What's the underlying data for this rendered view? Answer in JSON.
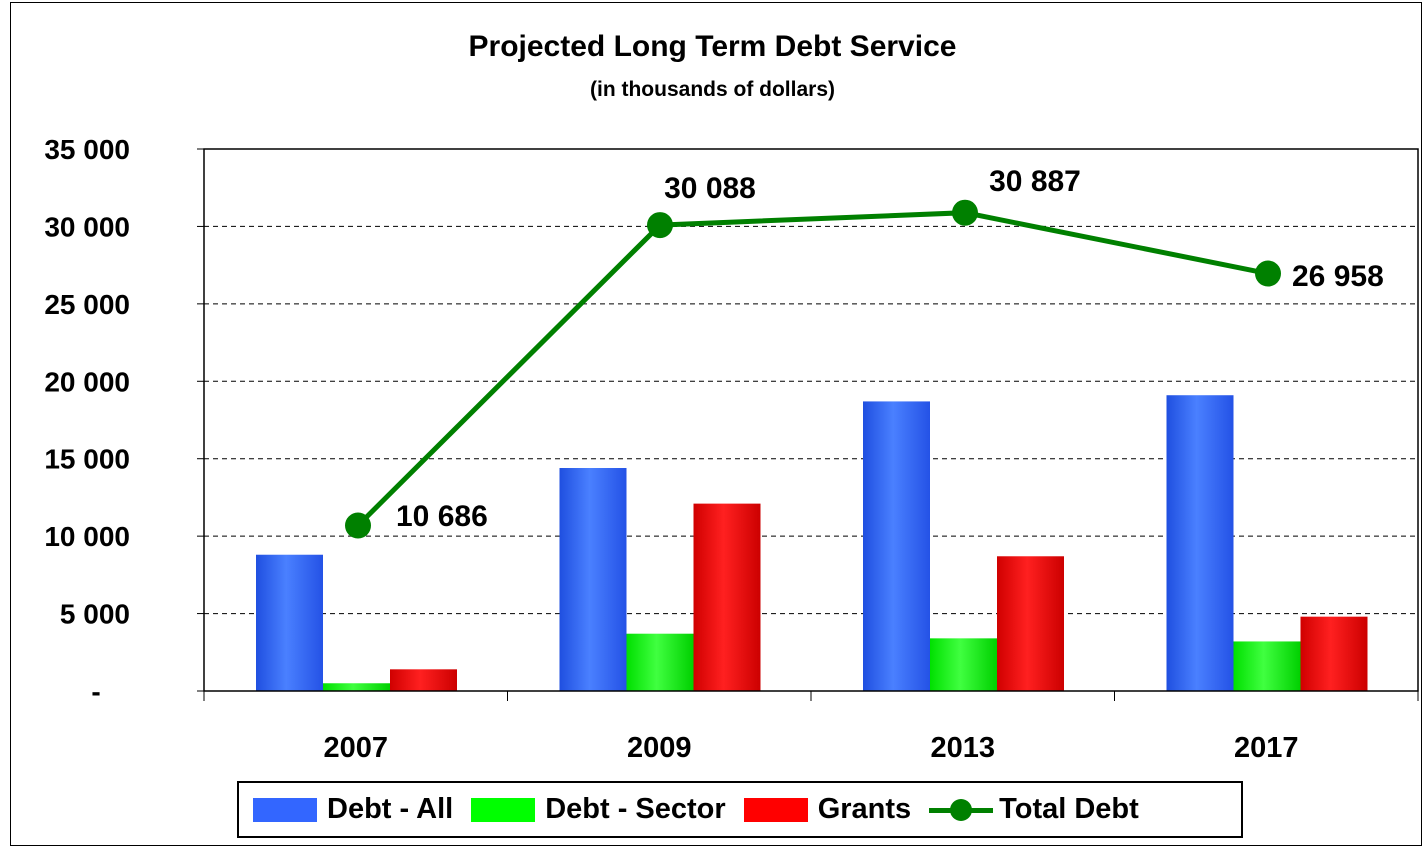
{
  "chart_data": {
    "type": "bar",
    "title": "Projected Long Term Debt Service",
    "subtitle": "(in thousands of dollars)",
    "categories": [
      "2007",
      "2009",
      "2013",
      "2017"
    ],
    "ylim": [
      0,
      35000
    ],
    "yticks": [
      0,
      5000,
      10000,
      15000,
      20000,
      25000,
      30000,
      35000
    ],
    "ytick_labels": [
      "-",
      "5 000",
      "10 000",
      "15 000",
      "20 000",
      "25 000",
      "30 000",
      "35 000"
    ],
    "grid": "horizontal-dashed",
    "legend_position": "bottom",
    "series": [
      {
        "name": "Debt - All",
        "kind": "bar",
        "color": "#3366FF",
        "values": [
          8800,
          14400,
          18700,
          19100
        ]
      },
      {
        "name": "Debt - Sector",
        "kind": "bar",
        "color": "#00FF00",
        "values": [
          500,
          3700,
          3400,
          3200
        ]
      },
      {
        "name": "Grants",
        "kind": "bar",
        "color": "#FF0000",
        "values": [
          1400,
          12100,
          8700,
          4800
        ]
      },
      {
        "name": "Total Debt",
        "kind": "line",
        "color": "#008000",
        "values": [
          10686,
          30088,
          30887,
          26958
        ],
        "data_labels": [
          "10 686",
          "30 088",
          "30 887",
          "26 958"
        ]
      }
    ]
  }
}
